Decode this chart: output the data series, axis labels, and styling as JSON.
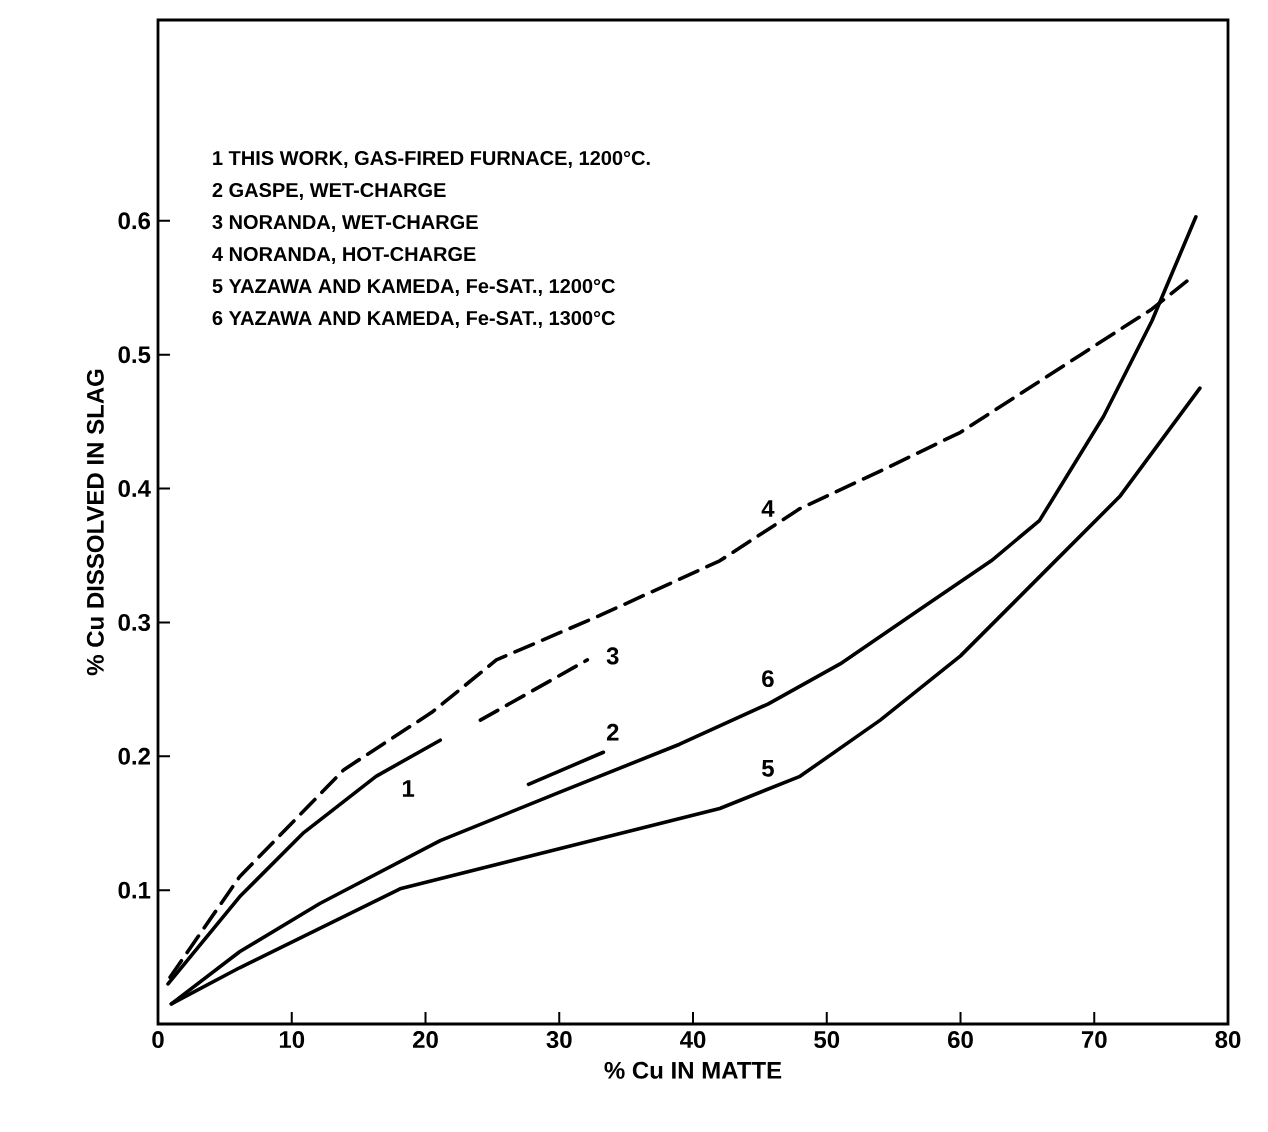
{
  "chart_data": {
    "type": "line",
    "xlabel": "% Cu IN MATTE",
    "ylabel": "% Cu DISSOLVED IN SLAG",
    "xlim": [
      0,
      80
    ],
    "xticks": [
      0,
      10,
      20,
      30,
      40,
      50,
      60,
      70,
      80
    ],
    "ylim": [
      0,
      0.75
    ],
    "yticks": [
      0.1,
      0.2,
      0.3,
      0.4,
      0.5,
      0.6
    ],
    "marker": "none",
    "series": [
      {
        "color": "#000000",
        "line_style": "solid",
        "x": [
          0.75,
          6.1,
          10.9,
          16.3,
          21.1
        ],
        "values": [
          0.03,
          0.095,
          0.143,
          0.185,
          0.212
        ]
      },
      {
        "color": "#000000",
        "line_style": "solid",
        "x": [
          27.7,
          33.3
        ],
        "values": [
          0.179,
          0.203
        ]
      },
      {
        "color": "#000000",
        "line_style": "dashed",
        "x": [
          24.1,
          32.1
        ],
        "values": [
          0.227,
          0.272
        ]
      },
      {
        "color": "#000000",
        "line_style": "dashed",
        "x": [
          0.9,
          6.1,
          13.9,
          20.5,
          25.3,
          33,
          42,
          48,
          54,
          60,
          69,
          74.3,
          77.3
        ],
        "values": [
          0.035,
          0.11,
          0.19,
          0.233,
          0.272,
          0.305,
          0.346,
          0.385,
          0.413,
          0.442,
          0.5,
          0.534,
          0.558
        ]
      },
      {
        "color": "#000000",
        "line_style": "solid",
        "x": [
          1,
          6.1,
          18.1,
          30,
          42,
          48,
          54,
          60,
          65.9,
          71.9,
          77.9
        ],
        "values": [
          0.015,
          0.042,
          0.101,
          0.131,
          0.161,
          0.185,
          0.227,
          0.275,
          0.334,
          0.394,
          0.475
        ]
      },
      {
        "color": "#000000",
        "line_style": "solid",
        "x": [
          1,
          6.1,
          12.1,
          21.1,
          30,
          39,
          45.6,
          51,
          57,
          62.3,
          65.9,
          70.7,
          74.3,
          77.6
        ],
        "values": [
          0.015,
          0.054,
          0.09,
          0.137,
          0.173,
          0.209,
          0.239,
          0.269,
          0.31,
          0.346,
          0.376,
          0.454,
          0.525,
          0.603
        ]
      }
    ],
    "annotations": [
      "1 THIS WORK, GAS-FIRED FURNACE, 1200°C.",
      "2 GASPE, WET-CHARGE",
      "3 NORANDA, WET-CHARGE",
      "4 NORANDA, HOT-CHARGE",
      "5 YAZAWA AND KAMEDA, Fe-SAT., 1200°C",
      "6 YAZAWA AND KAMEDA, Fe-SAT., 1300°C",
      {
        "text": "1",
        "x": 18.7,
        "y": 0.176
      },
      {
        "text": "2",
        "x": 34,
        "y": 0.218
      },
      {
        "text": "3",
        "x": 34,
        "y": 0.275
      },
      {
        "text": "4",
        "x": 45.6,
        "y": 0.385
      },
      {
        "text": "5",
        "x": 45.6,
        "y": 0.191
      },
      {
        "text": "6",
        "x": 45.6,
        "y": 0.258
      }
    ]
  }
}
